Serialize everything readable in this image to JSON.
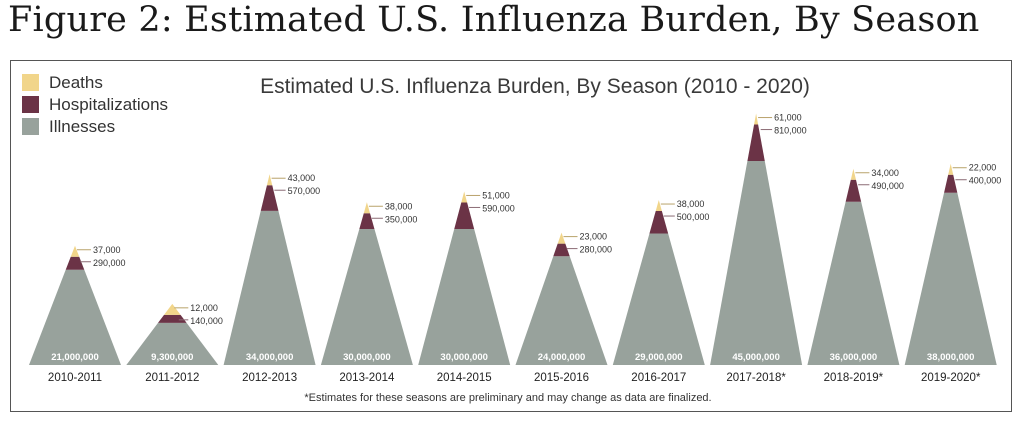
{
  "page_title": "Figure 2: Estimated U.S. Influenza Burden, By Season",
  "colors": {
    "deaths": "#f1d58a",
    "hospitalizations": "#6b3346",
    "illnesses": "#98a29c",
    "illness_label": "#ffffff"
  },
  "chart_data": {
    "type": "area",
    "title": "Estimated U.S. Influenza Burden, By Season (2010 - 2020)",
    "legend": {
      "placement": "top-left",
      "items": [
        "Deaths",
        "Hospitalizations",
        "Illnesses"
      ]
    },
    "series": [
      {
        "name": "Illnesses",
        "values": [
          21000000,
          9300000,
          34000000,
          30000000,
          30000000,
          24000000,
          29000000,
          45000000,
          36000000,
          38000000
        ],
        "labels": [
          "21,000,000",
          "9,300,000",
          "34,000,000",
          "30,000,000",
          "30,000,000",
          "24,000,000",
          "29,000,000",
          "45,000,000",
          "36,000,000",
          "38,000,000"
        ]
      },
      {
        "name": "Hospitalizations",
        "values": [
          290000,
          140000,
          570000,
          350000,
          590000,
          280000,
          500000,
          810000,
          490000,
          400000
        ],
        "labels": [
          "290,000",
          "140,000",
          "570,000",
          "350,000",
          "590,000",
          "280,000",
          "500,000",
          "810,000",
          "490,000",
          "400,000"
        ]
      },
      {
        "name": "Deaths",
        "values": [
          37000,
          12000,
          43000,
          38000,
          51000,
          23000,
          38000,
          61000,
          34000,
          22000
        ],
        "labels": [
          "37,000",
          "12,000",
          "43,000",
          "38,000",
          "51,000",
          "23,000",
          "38,000",
          "61,000",
          "34,000",
          "22,000"
        ]
      }
    ],
    "categories": [
      "2010-2011",
      "2011-2012",
      "2012-2013",
      "2013-2014",
      "2014-2015",
      "2015-2016",
      "2016-2017",
      "2017-2018*",
      "2018-2019*",
      "2019-2020*"
    ],
    "footnote": "*Estimates for these seasons are preliminary and may change as data are finalized.",
    "grid": false
  }
}
